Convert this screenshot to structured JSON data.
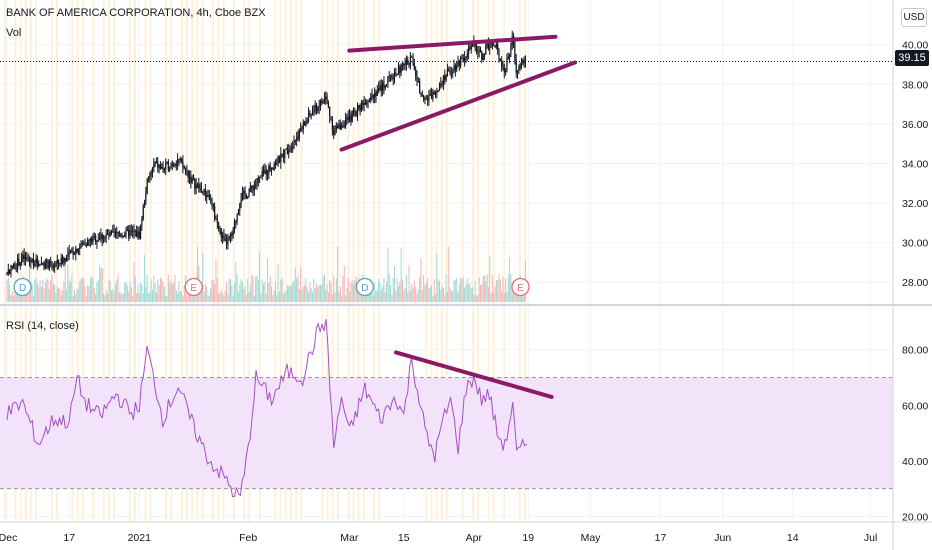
{
  "legend": {
    "symbol": "BANK OF AMERICA CORPORATION, 4h, Cboe BZX",
    "volume": "Vol",
    "rsi": "RSI (14, close)"
  },
  "currency": "USD",
  "last_price": "39.15",
  "colors": {
    "candle": "#131722",
    "trendline": "#8a1a63",
    "rsi_line": "#a64fc4",
    "rsi_band": "#f2e3fb",
    "vol_up": "#9ed8d3",
    "vol_down": "#f7b3b3",
    "session_stripe": "#fff1d9",
    "grid": "#f0f3fa"
  },
  "chart_data": [
    {
      "type": "candlestick",
      "title": "BANK OF AMERICA CORPORATION, 4h, Cboe BZX",
      "ylim": [
        27,
        41.5
      ],
      "y_ticks": [
        "40.00",
        "38.00",
        "36.00",
        "34.00",
        "32.00",
        "30.00",
        "28.00"
      ],
      "y_tick_values": [
        40,
        38,
        36,
        34,
        32,
        30,
        28
      ],
      "x_labels": [
        "Dec",
        "17",
        "2021",
        "Feb",
        "Mar",
        "15",
        "Apr",
        "19",
        "May",
        "17",
        "Jun",
        "14",
        "Jul"
      ],
      "x_label_positions": [
        0,
        8,
        17,
        31,
        44,
        51,
        60,
        67,
        75,
        84,
        92,
        101,
        111
      ],
      "close_anchors_x": [
        0,
        2,
        4,
        6,
        8,
        10,
        12,
        14,
        16,
        17,
        18,
        19,
        20,
        22,
        24,
        26,
        27,
        28,
        29,
        30,
        31,
        33,
        35,
        37,
        39,
        41,
        42,
        43,
        44,
        46,
        48,
        50,
        52,
        53,
        54,
        55,
        56,
        58,
        60,
        61,
        62,
        63,
        64,
        65,
        65.5,
        66,
        66.8
      ],
      "close_anchors_y": [
        28.5,
        29.2,
        29.0,
        28.8,
        29.4,
        30.0,
        30.3,
        30.4,
        30.5,
        30.4,
        33.0,
        34.0,
        33.7,
        34.2,
        33.0,
        32.3,
        31.0,
        29.9,
        30.4,
        32.3,
        32.5,
        33.5,
        34.2,
        35.2,
        36.5,
        37.3,
        35.6,
        36.0,
        36.2,
        37.2,
        37.8,
        38.6,
        39.3,
        37.8,
        37.2,
        37.6,
        38.3,
        39.1,
        40.0,
        39.4,
        40.1,
        39.8,
        38.6,
        40.4,
        38.5,
        39.3,
        39.15
      ],
      "events": [
        {
          "label": "D",
          "x": 2
        },
        {
          "label": "E",
          "x": 24
        },
        {
          "label": "D",
          "x": 46
        },
        {
          "label": "E",
          "x": 66
        }
      ],
      "trendlines": [
        {
          "x1": 44,
          "y1": 39.7,
          "x2": 70.5,
          "y2": 40.4
        },
        {
          "x1": 43,
          "y1": 34.7,
          "x2": 73,
          "y2": 39.1
        }
      ],
      "last_price": 39.15
    },
    {
      "type": "line",
      "title": "RSI (14, close)",
      "ylim": [
        18,
        95
      ],
      "y_ticks": [
        "80.00",
        "60.00",
        "40.00",
        "20.00"
      ],
      "y_tick_values": [
        80,
        60,
        40,
        20
      ],
      "band": [
        30,
        70
      ],
      "x": [
        0,
        2,
        4,
        6,
        8,
        9,
        10,
        12,
        14,
        16,
        17,
        18,
        19,
        20,
        22,
        24,
        26,
        28,
        29,
        30,
        31,
        32,
        34,
        36,
        38,
        40,
        41,
        42,
        43,
        44,
        46,
        48,
        50,
        51,
        52,
        53,
        54,
        55,
        56,
        57,
        58,
        59,
        60,
        61,
        62,
        63,
        64,
        65,
        65.5,
        66,
        66.8
      ],
      "values": [
        57,
        61,
        46,
        55,
        54,
        70,
        61,
        56,
        64,
        57,
        60,
        80,
        68,
        55,
        67,
        52,
        40,
        34,
        29,
        27,
        44,
        70,
        62,
        72,
        70,
        87,
        90,
        45,
        63,
        50,
        66,
        55,
        63,
        56,
        77,
        62,
        48,
        42,
        54,
        62,
        45,
        66,
        70,
        62,
        64,
        50,
        45,
        61,
        42,
        44,
        46
      ],
      "trendlines": [
        {
          "x1": 50,
          "y1": 79,
          "x2": 70,
          "y2": 63
        }
      ]
    }
  ]
}
